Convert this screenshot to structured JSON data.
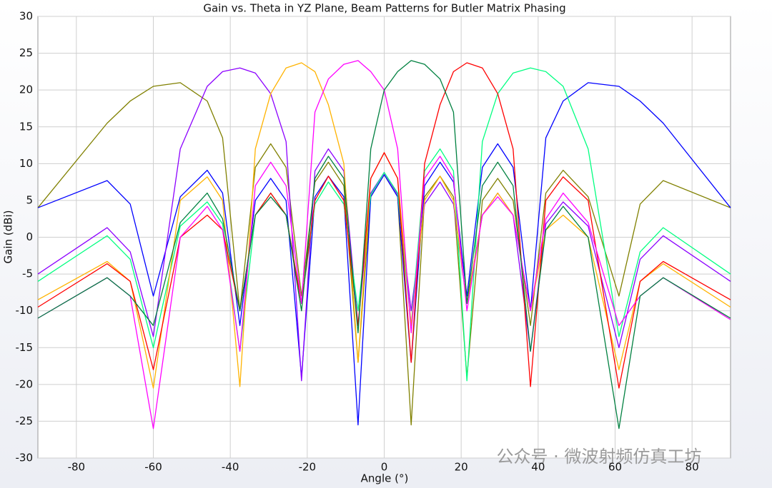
{
  "chart_data": {
    "type": "line",
    "title": "Gain vs. Theta in YZ Plane, Beam Patterns for Butler Matrix Phasing",
    "x_label": "Angle (°)",
    "y_label": "Gain (dBi)",
    "watermark": "公众号 · 微波射频仿真工坊",
    "xlim": [
      -90,
      90
    ],
    "xticks": [
      -80,
      -60,
      -40,
      -20,
      0,
      20,
      40,
      60,
      80
    ],
    "ylim": [
      -30,
      30
    ],
    "yticks": [
      -30,
      -25,
      -20,
      -15,
      -10,
      -5,
      0,
      5,
      10,
      15,
      20,
      25,
      30
    ],
    "grid": true,
    "x": [
      -90,
      -72,
      -66,
      -60,
      -53,
      -46,
      -42,
      -37.5,
      -33.5,
      -29.5,
      -25.5,
      -21.5,
      -18,
      -14.5,
      -10.5,
      -6.8,
      -3.5,
      0,
      3.5,
      7,
      10.5,
      14.5,
      18,
      21.5,
      25.5,
      29.5,
      33.5,
      38,
      42,
      46.5,
      53,
      61,
      66.5,
      72.5,
      90
    ],
    "series": [
      {
        "color": "#808000",
        "values": [
          4,
          15.5,
          18.5,
          20.5,
          21,
          18.5,
          13.5,
          -10,
          9.5,
          12.7,
          9.5,
          -8,
          7.5,
          10.2,
          7,
          -17,
          5.5,
          8.5,
          5.5,
          -25.5,
          5.5,
          8.3,
          5.5,
          -19,
          5,
          8,
          5,
          -12,
          6,
          9.1,
          5.5,
          -8,
          4.5,
          7.7,
          4
        ]
      },
      {
        "color": "#0000ff",
        "values": [
          4,
          7.7,
          4.5,
          -8,
          5.5,
          9.1,
          6,
          -12,
          5,
          8,
          5,
          -19,
          5.5,
          8.3,
          5.5,
          -25.5,
          5.5,
          8.5,
          5.5,
          -17,
          7,
          10.2,
          7.5,
          -8,
          9.5,
          12.7,
          9.5,
          -10,
          13.5,
          18.5,
          21,
          20.5,
          18.5,
          15.5,
          4
        ]
      },
      {
        "color": "#8c00ff",
        "values": [
          -5,
          1.3,
          -2,
          -13.5,
          12,
          20.5,
          22.5,
          23,
          22.3,
          19.5,
          13,
          -19.5,
          9,
          12,
          9,
          -12,
          6,
          8.8,
          5.8,
          -10,
          4.5,
          7.5,
          4.5,
          -9,
          3,
          6,
          3,
          -15.5,
          1.8,
          4.8,
          1.5,
          -15,
          -3,
          0.2,
          -6
        ]
      },
      {
        "color": "#00ff80",
        "values": [
          -6,
          0.2,
          -3,
          -15,
          1.5,
          4.8,
          1.8,
          -15.5,
          3,
          6,
          3,
          -9,
          4.5,
          7.5,
          4.5,
          -10,
          5.8,
          8.8,
          6,
          -12,
          9,
          12,
          9,
          -19.5,
          13,
          19.5,
          22.3,
          23,
          22.5,
          20.5,
          12,
          -13.5,
          -2,
          1.3,
          -5
        ]
      },
      {
        "color": "#ffb300",
        "values": [
          -8.5,
          -3.3,
          -6,
          -20.5,
          5,
          8.2,
          5,
          -20.3,
          12,
          19.5,
          23,
          23.7,
          22.5,
          18,
          10,
          -17,
          8,
          11.5,
          8,
          -12,
          5,
          8.3,
          5,
          -9,
          3,
          6,
          3,
          -10,
          1,
          3,
          0,
          -18,
          -6,
          -3.6,
          -9.5
        ]
      },
      {
        "color": "#ff0000",
        "values": [
          -9.5,
          -3.6,
          -6,
          -18,
          0,
          3,
          1,
          -10,
          3,
          6,
          3,
          -9,
          5,
          8.3,
          5,
          -12,
          8,
          11.5,
          8,
          -17,
          10,
          18,
          22.5,
          23.7,
          23,
          19.5,
          12,
          -20.3,
          5,
          8.2,
          5,
          -20.5,
          -6,
          -3.3,
          -8.5
        ]
      },
      {
        "color": "#ff00ff",
        "values": [
          -11,
          -5.5,
          -8,
          -26,
          0,
          4.2,
          1,
          -15.5,
          7,
          10.2,
          7,
          -9,
          17,
          21.5,
          23.5,
          24,
          22.5,
          20,
          12,
          -13,
          8,
          11,
          8,
          -10,
          3,
          5.5,
          3,
          -10,
          2.5,
          6,
          2,
          -12,
          -8,
          -5.5,
          -11.2
        ]
      },
      {
        "color": "#008040",
        "values": [
          -11,
          -5.5,
          -8,
          -12,
          2,
          6,
          2.5,
          -10,
          3,
          5.5,
          3,
          -10,
          8,
          11,
          8,
          -13,
          12,
          20,
          22.5,
          24,
          23.5,
          21.5,
          17,
          -9,
          7,
          10.2,
          7,
          -15.5,
          1,
          4.2,
          0,
          -26,
          -8,
          -5.5,
          -11
        ]
      }
    ]
  }
}
